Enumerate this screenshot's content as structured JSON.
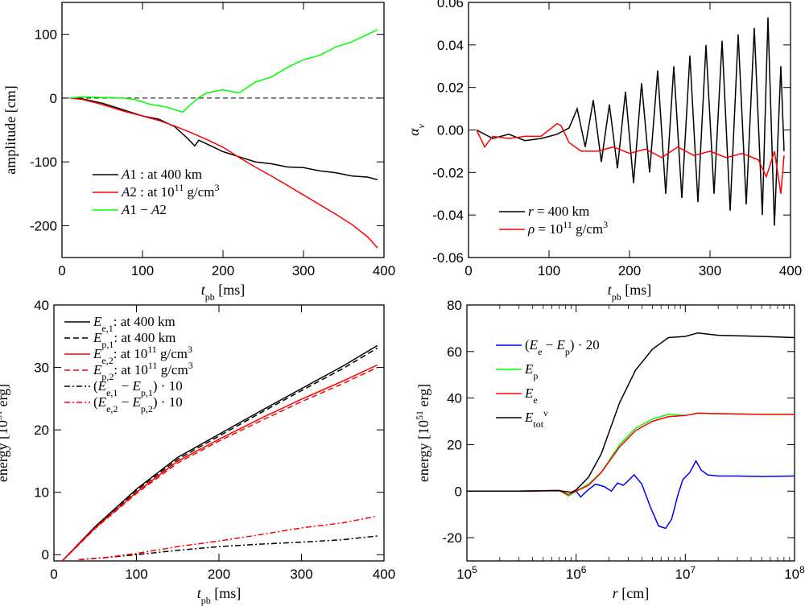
{
  "chart_data": [
    {
      "panel": "top-left",
      "type": "line",
      "xlabel": "t_pb [ms]",
      "ylabel": "amplitude [cm]",
      "xlim": [
        0,
        400
      ],
      "ylim": [
        -250,
        150
      ],
      "xticks": [
        "0",
        "100",
        "200",
        "300",
        "400"
      ],
      "yticks": [
        "-200",
        "-100",
        "0",
        "100"
      ],
      "legend": "bottom-left",
      "reference_line": {
        "y": 0,
        "style": "dashed"
      },
      "series": [
        {
          "name": "A1 : at 400 km",
          "color": "#000000",
          "x": [
            10,
            25,
            50,
            75,
            100,
            120,
            140,
            155,
            165,
            170,
            180,
            200,
            220,
            240,
            260,
            280,
            300,
            320,
            340,
            360,
            380,
            392
          ],
          "y": [
            0,
            -1,
            -8,
            -18,
            -28,
            -33,
            -45,
            -62,
            -75,
            -66,
            -72,
            -84,
            -92,
            -100,
            -103,
            -108,
            -109,
            -114,
            -117,
            -122,
            -124,
            -128
          ]
        },
        {
          "name": "A2 : at 10^11 g/cm^3",
          "color": "#ff0000",
          "x": [
            10,
            25,
            50,
            75,
            100,
            120,
            140,
            160,
            180,
            200,
            220,
            240,
            260,
            280,
            300,
            320,
            340,
            360,
            380,
            392
          ],
          "y": [
            0,
            -2,
            -10,
            -20,
            -28,
            -35,
            -44,
            -54,
            -65,
            -77,
            -93,
            -108,
            -122,
            -137,
            -152,
            -167,
            -182,
            -198,
            -218,
            -235
          ]
        },
        {
          "name": "A1 − A2",
          "color": "#00ff00",
          "x": [
            10,
            25,
            50,
            75,
            90,
            110,
            130,
            150,
            160,
            170,
            180,
            200,
            220,
            240,
            260,
            280,
            300,
            320,
            340,
            360,
            380,
            392
          ],
          "y": [
            0,
            2,
            1,
            0,
            -2,
            -10,
            -14,
            -22,
            -10,
            1,
            8,
            13,
            8,
            25,
            33,
            48,
            60,
            67,
            80,
            88,
            100,
            107
          ]
        }
      ]
    },
    {
      "panel": "top-right",
      "type": "line",
      "xlabel": "t_pb [ms]",
      "ylabel": "α_ν",
      "xlim": [
        0,
        400
      ],
      "ylim": [
        -0.06,
        0.06
      ],
      "xticks": [
        "0",
        "100",
        "200",
        "300",
        "400"
      ],
      "yticks": [
        "-0.06",
        "-0.04",
        "-0.02",
        "0.00",
        "0.02",
        "0.04",
        "0.06"
      ],
      "legend": "bottom-left",
      "series": [
        {
          "name": "r = 400 km",
          "color": "#000000",
          "x": [
            10,
            30,
            50,
            70,
            90,
            110,
            125,
            135,
            145,
            155,
            165,
            175,
            185,
            195,
            205,
            215,
            225,
            235,
            245,
            255,
            265,
            275,
            285,
            295,
            305,
            315,
            325,
            335,
            345,
            355,
            365,
            372,
            380,
            388,
            392
          ],
          "y": [
            0,
            -0.004,
            -0.002,
            -0.005,
            -0.004,
            -0.002,
            0.001,
            0.01,
            -0.008,
            0.014,
            -0.015,
            0.012,
            -0.018,
            0.018,
            -0.025,
            0.022,
            -0.02,
            0.028,
            -0.03,
            0.03,
            -0.032,
            0.035,
            -0.034,
            0.04,
            -0.03,
            0.042,
            -0.038,
            0.045,
            -0.035,
            0.048,
            -0.04,
            0.053,
            -0.045,
            0.03,
            -0.01
          ]
        },
        {
          "name": "ρ = 10^11 g/cm^3",
          "color": "#ff0000",
          "x": [
            10,
            20,
            30,
            50,
            70,
            90,
            110,
            115,
            125,
            140,
            160,
            180,
            200,
            220,
            240,
            260,
            280,
            300,
            320,
            340,
            360,
            370,
            380,
            388,
            392
          ],
          "y": [
            0,
            -0.008,
            -0.003,
            -0.004,
            -0.003,
            -0.003,
            0.003,
            0.002,
            -0.006,
            -0.01,
            -0.01,
            -0.008,
            -0.011,
            -0.009,
            -0.013,
            -0.008,
            -0.012,
            -0.01,
            -0.013,
            -0.011,
            -0.014,
            -0.022,
            -0.01,
            -0.03,
            -0.012
          ]
        }
      ]
    },
    {
      "panel": "bottom-left",
      "type": "line",
      "xlabel": "t_pb [ms]",
      "ylabel": "energy [10^51 erg]",
      "xlim": [
        0,
        400
      ],
      "ylim": [
        -1,
        40
      ],
      "xticks": [
        "0",
        "100",
        "200",
        "300",
        "400"
      ],
      "yticks": [
        "0",
        "10",
        "20",
        "30",
        "40"
      ],
      "legend": "top-left",
      "series": [
        {
          "name": "E_e,1: at 400 km",
          "color": "#000000",
          "style": "solid",
          "x": [
            10,
            50,
            100,
            150,
            200,
            250,
            300,
            350,
            392
          ],
          "y": [
            -1,
            4.5,
            10.5,
            15.6,
            19.3,
            23,
            26.6,
            30.2,
            33.5
          ]
        },
        {
          "name": "E_p,1: at 400 km",
          "color": "#000000",
          "style": "dashed",
          "x": [
            10,
            50,
            100,
            150,
            200,
            250,
            300,
            350,
            392
          ],
          "y": [
            -1,
            4.4,
            10.3,
            15.3,
            19,
            22.7,
            26.3,
            29.8,
            33.1
          ]
        },
        {
          "name": "E_e,2: at 10^11 g/cm^3",
          "color": "#ff0000",
          "style": "solid",
          "x": [
            10,
            50,
            100,
            150,
            200,
            250,
            300,
            350,
            392
          ],
          "y": [
            -1,
            4.3,
            10,
            15,
            18.5,
            21.8,
            24.9,
            27.8,
            30.4
          ]
        },
        {
          "name": "E_p,2: at 10^11 g/cm^3",
          "color": "#ff0000",
          "style": "dashed",
          "x": [
            10,
            50,
            100,
            150,
            200,
            250,
            300,
            350,
            392
          ],
          "y": [
            -1,
            4.2,
            9.8,
            14.7,
            18.2,
            21.4,
            24.5,
            27.4,
            30
          ]
        },
        {
          "name": "(E_e,1 − E_p,1) · 10",
          "color": "#000000",
          "style": "dash-dot",
          "x": [
            30,
            60,
            100,
            150,
            200,
            250,
            300,
            350,
            392
          ],
          "y": [
            -0.8,
            -0.5,
            0,
            0.7,
            1.3,
            1.7,
            2,
            2.4,
            3
          ]
        },
        {
          "name": "(E_e,2 − E_p,2) · 10",
          "color": "#ff0000",
          "style": "dash-dot",
          "x": [
            30,
            60,
            100,
            150,
            200,
            250,
            300,
            350,
            392
          ],
          "y": [
            -0.8,
            -0.5,
            0.2,
            1.3,
            2.2,
            3.2,
            4.3,
            5.1,
            6.2
          ]
        }
      ]
    },
    {
      "panel": "bottom-right",
      "type": "line",
      "xlabel": "r [cm]",
      "ylabel": "energy [10^51 erg]",
      "xscale": "log",
      "xlim": [
        100000,
        100000000
      ],
      "ylim": [
        -30,
        80
      ],
      "xticks": [
        "10^5",
        "10^6",
        "10^7",
        "10^8"
      ],
      "yticks": [
        "-20",
        "0",
        "20",
        "40",
        "60",
        "80"
      ],
      "legend": "top-left",
      "series": [
        {
          "name": "(E_e − E_p) · 20",
          "color": "#0000ff",
          "x": [
            100000,
            300000,
            700000,
            850000,
            1000000,
            1100000,
            1250000,
            1500000,
            1800000,
            2100000,
            2400000,
            2700000,
            3000000,
            3400000,
            4000000,
            4800000,
            5700000,
            6600000,
            7500000,
            8500000,
            9500000,
            11000000,
            12500000,
            14000000,
            16000000,
            20000000,
            30000000,
            50000000,
            100000000
          ],
          "y": [
            0,
            0,
            0.3,
            -2,
            0,
            -2.5,
            0,
            3,
            2,
            0,
            3.5,
            2.5,
            4.5,
            7,
            3,
            -7,
            -15,
            -16,
            -12,
            -2,
            5,
            8,
            13,
            9,
            7,
            6.5,
            6.5,
            6.3,
            6.5
          ]
        },
        {
          "name": "E_p",
          "color": "#00ff00",
          "x": [
            100000,
            300000,
            700000,
            850000,
            1000000,
            1300000,
            1700000,
            2500000,
            3500000,
            5000000,
            7000000,
            10000000,
            13000000,
            20000000,
            50000000,
            100000000
          ],
          "y": [
            0,
            0,
            0.3,
            -2,
            0,
            3,
            8,
            20,
            27,
            31,
            33,
            32.5,
            33.5,
            33.3,
            33,
            33
          ]
        },
        {
          "name": "E_e",
          "color": "#ff0000",
          "x": [
            100000,
            300000,
            700000,
            850000,
            1000000,
            1300000,
            1700000,
            2500000,
            3500000,
            5000000,
            7000000,
            10000000,
            13000000,
            20000000,
            50000000,
            100000000
          ],
          "y": [
            0,
            0,
            0.3,
            -1.5,
            0,
            2.5,
            8,
            19,
            26,
            30,
            32,
            32.5,
            33.5,
            33.3,
            33,
            33
          ]
        },
        {
          "name": "E_tot^ν",
          "color": "#000000",
          "x": [
            100000,
            300000,
            700000,
            900000,
            1000000,
            1300000,
            1700000,
            2500000,
            3500000,
            5000000,
            7000000,
            10000000,
            13000000,
            20000000,
            50000000,
            100000000
          ],
          "y": [
            0,
            0,
            0.2,
            -0.5,
            0.5,
            6,
            16,
            38,
            52,
            61,
            66,
            66.5,
            68,
            67,
            66.5,
            66
          ]
        }
      ]
    }
  ]
}
